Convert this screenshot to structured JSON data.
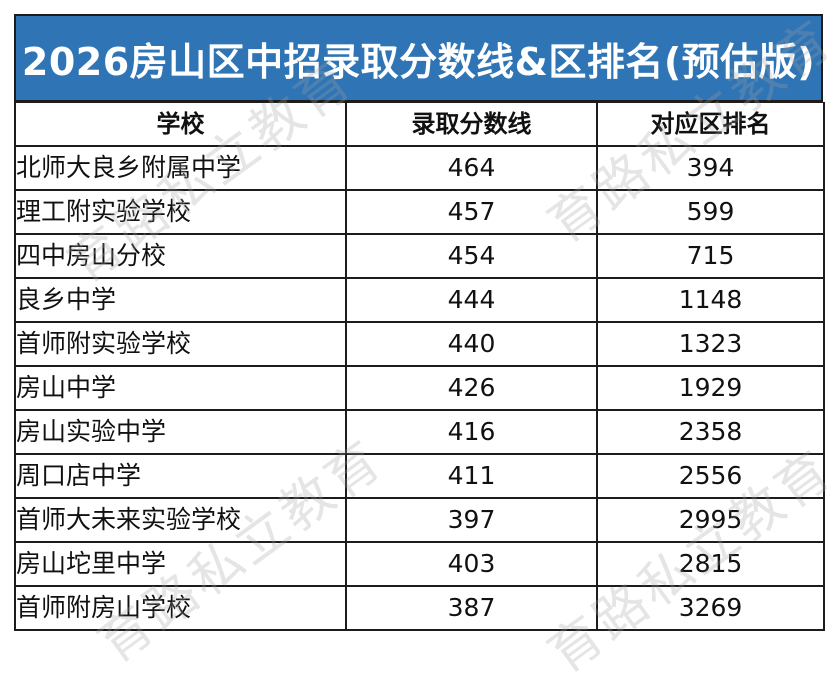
{
  "title": "2026房山区中招录取分数线&区排名(预估版)",
  "headers": {
    "school": "学校",
    "score": "录取分数线",
    "rank": "对应区排名"
  },
  "rows": [
    {
      "school": "北师大良乡附属中学",
      "score": "464",
      "rank": "394"
    },
    {
      "school": "理工附实验学校",
      "score": "457",
      "rank": "599"
    },
    {
      "school": "四中房山分校",
      "score": "454",
      "rank": "715"
    },
    {
      "school": "良乡中学",
      "score": "444",
      "rank": "1148"
    },
    {
      "school": "首师附实验学校",
      "score": "440",
      "rank": "1323"
    },
    {
      "school": "房山中学",
      "score": "426",
      "rank": "1929"
    },
    {
      "school": "房山实验中学",
      "score": "416",
      "rank": "2358"
    },
    {
      "school": "周口店中学",
      "score": "411",
      "rank": "2556"
    },
    {
      "school": "首师大未来实验学校",
      "score": "397",
      "rank": "2995"
    },
    {
      "school": "房山坨里中学",
      "score": "403",
      "rank": "2815"
    },
    {
      "school": "首师附房山学校",
      "score": "387",
      "rank": "3269"
    }
  ],
  "watermark": "育路私立教育",
  "colors": {
    "title_bg": "#2f75b5",
    "title_text": "#ffffff",
    "border": "#1c1c1c"
  }
}
